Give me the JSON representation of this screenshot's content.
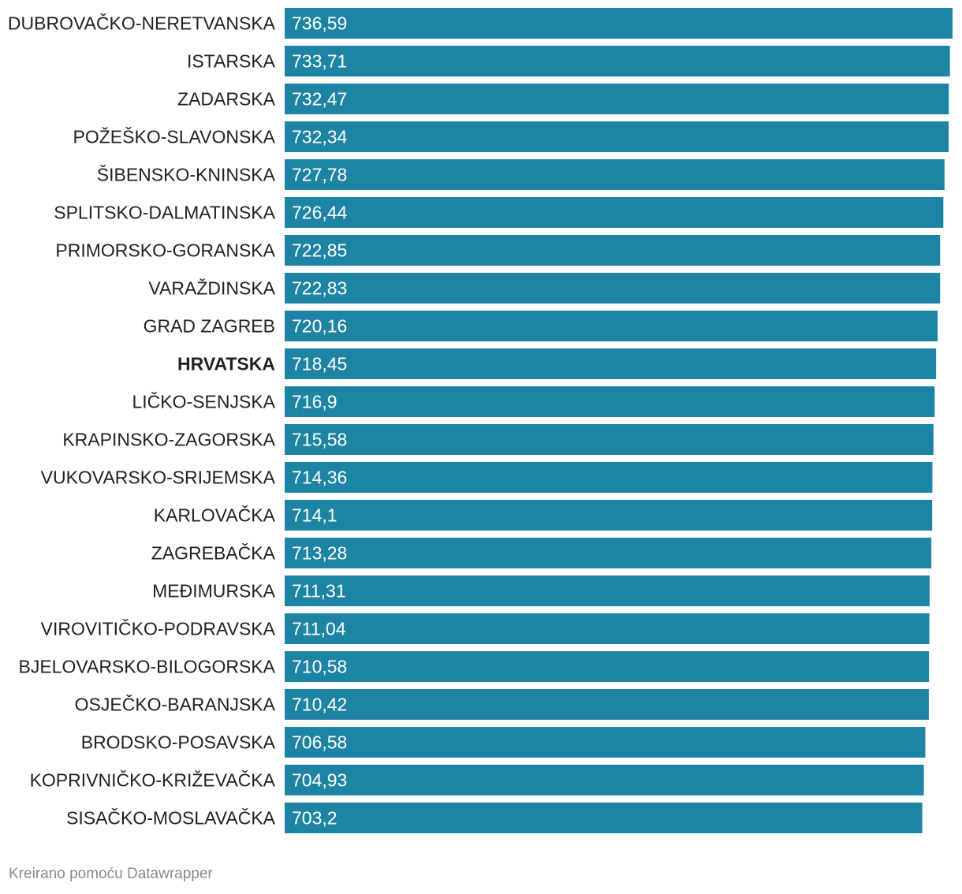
{
  "colors": {
    "bar": "#1e84a3"
  },
  "footer": {
    "credit": "Kreirano pomoću Datawrapper"
  },
  "chart_data": {
    "type": "bar",
    "orientation": "horizontal",
    "categories": [
      "DUBROVAČKO-NERETVANSKA",
      "ISTARSKA",
      "ZADARSKA",
      "POŽEŠKO-SLAVONSKA",
      "ŠIBENSKO-KNINSKA",
      "SPLITSKO-DALMATINSKA",
      "PRIMORSKO-GORANSKA",
      "VARAŽDINSKA",
      "GRAD ZAGREB",
      "HRVATSKA",
      "LIČKO-SENJSKA",
      "KRAPINSKO-ZAGORSKA",
      "VUKOVARSKO-SRIJEMSKA",
      "KARLOVAČKA",
      "ZAGREBAČKA",
      "MEĐIMURSKA",
      "VIROVITIČKO-PODRAVSKA",
      "BJELOVARSKO-BILOGORSKA",
      "OSJEČKO-BARANJSKA",
      "BRODSKO-POSAVSKA",
      "KOPRIVNIČKO-KRIŽEVAČKA",
      "SISAČKO-MOSLAVAČKA"
    ],
    "values": [
      736.59,
      733.71,
      732.47,
      732.34,
      727.78,
      726.44,
      722.85,
      722.83,
      720.16,
      718.45,
      716.9,
      715.58,
      714.36,
      714.1,
      713.28,
      711.31,
      711.04,
      710.58,
      710.42,
      706.58,
      704.93,
      703.2
    ],
    "value_labels": [
      "736,59",
      "733,71",
      "732,47",
      "732,34",
      "727,78",
      "726,44",
      "722,85",
      "722,83",
      "720,16",
      "718,45",
      "716,9",
      "715,58",
      "714,36",
      "714,1",
      "713,28",
      "711,31",
      "711,04",
      "710,58",
      "710,42",
      "706,58",
      "704,93",
      "703,2"
    ],
    "highlight": [
      "HRVATSKA"
    ],
    "xlim": [
      0,
      736.59
    ],
    "title": "",
    "xlabel": "",
    "ylabel": "",
    "grid": false,
    "legend": "none"
  }
}
